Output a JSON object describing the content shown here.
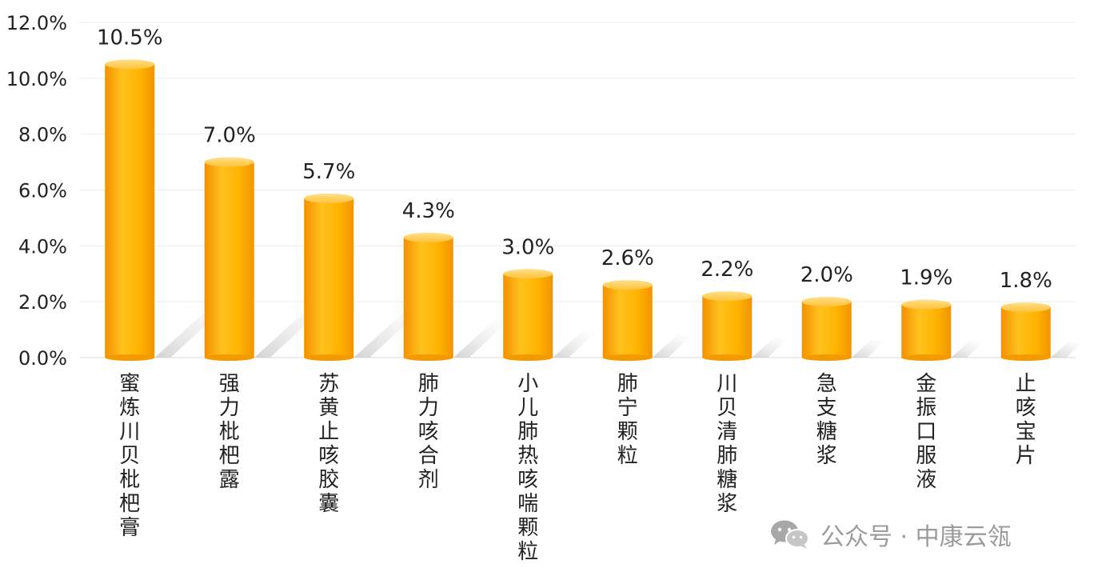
{
  "chart_data": {
    "type": "bar",
    "categories": [
      "蜜炼川贝枇杷膏",
      "强力枇杷露",
      "苏黄止咳胶囊",
      "肺力咳合剂",
      "小儿肺热咳喘颗粒",
      "肺宁颗粒",
      "川贝清肺糖浆",
      "急支糖浆",
      "金振口服液",
      "止咳宝片"
    ],
    "values": [
      10.5,
      7.0,
      5.7,
      4.3,
      3.0,
      2.6,
      2.2,
      2.0,
      1.9,
      1.8
    ],
    "data_labels": [
      "10.5%",
      "7.0%",
      "5.7%",
      "4.3%",
      "3.0%",
      "2.6%",
      "2.2%",
      "2.0%",
      "1.9%",
      "1.8%"
    ],
    "yticks": [
      "0.0%",
      "2.0%",
      "4.0%",
      "6.0%",
      "8.0%",
      "10.0%",
      "12.0%"
    ],
    "ylim": [
      0,
      12
    ],
    "title": "",
    "xlabel": "",
    "ylabel": "",
    "grid": true,
    "bar_color": "#FFB000",
    "bar_color_dark": "#F59200",
    "bar_color_light": "#FFD36A",
    "label_color": "#222222",
    "tick_color": "#222222"
  },
  "watermark": {
    "text": "公众号 · 中康云瓴",
    "icon": "wechat-icon"
  }
}
